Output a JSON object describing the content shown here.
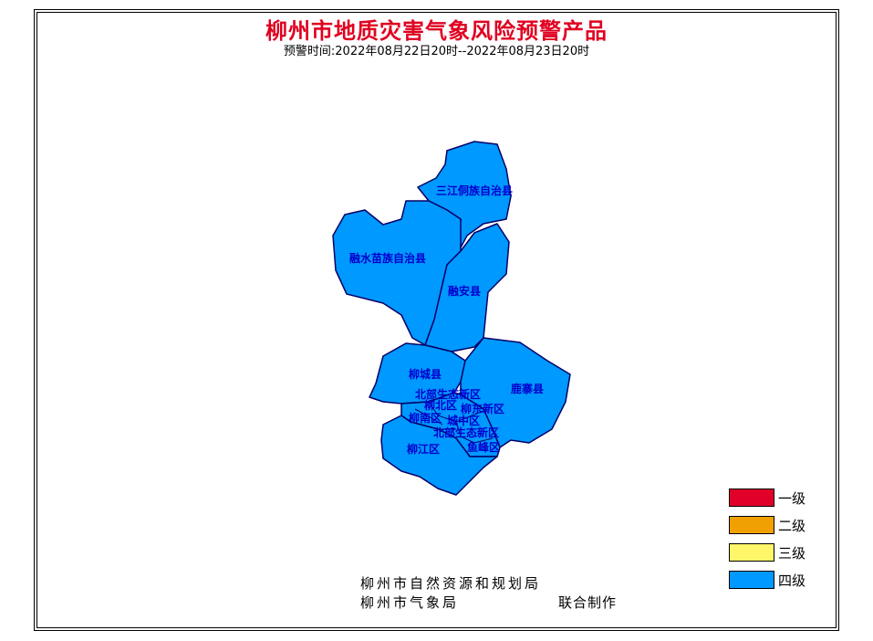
{
  "title": "柳州市地质灾害气象风险预警产品",
  "subtitle": "预警时间:2022年08月22日20时--2022年08月23日20时",
  "map": {
    "fill_color": "#0099ff",
    "border_color": "#000066",
    "regions": [
      {
        "name": "三江侗族自治县",
        "level": "四级"
      },
      {
        "name": "融水苗族自治县",
        "level": "四级"
      },
      {
        "name": "融安县",
        "level": "四级"
      },
      {
        "name": "柳城县",
        "level": "四级"
      },
      {
        "name": "鹿寨县",
        "level": "四级"
      },
      {
        "name": "北部生态新区",
        "level": "四级"
      },
      {
        "name": "柳北区",
        "level": "四级"
      },
      {
        "name": "柳东新区",
        "level": "四级"
      },
      {
        "name": "柳南区",
        "level": "四级"
      },
      {
        "name": "城中区",
        "level": "四级"
      },
      {
        "name": "北部生态新区",
        "level": "四级"
      },
      {
        "name": "鱼峰区",
        "level": "四级"
      },
      {
        "name": "柳江区",
        "level": "四级"
      }
    ]
  },
  "legend": [
    {
      "label": "一级",
      "color": "#e0002a"
    },
    {
      "label": "二级",
      "color": "#f0a000"
    },
    {
      "label": "三级",
      "color": "#fff66a"
    },
    {
      "label": "四级",
      "color": "#0099ff"
    }
  ],
  "footer": {
    "line1": "柳州市自然资源和规划局",
    "line2": "柳州市气象局",
    "joint": "联合制作"
  }
}
